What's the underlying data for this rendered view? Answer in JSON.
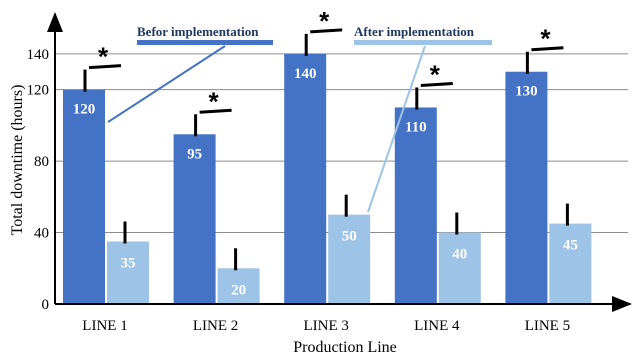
{
  "chart_data": {
    "type": "bar",
    "categories": [
      "LINE 1",
      "LINE 2",
      "LINE 3",
      "LINE 4",
      "LINE 5"
    ],
    "series": [
      {
        "name": "Befor implementation",
        "values": [
          120,
          95,
          140,
          110,
          130
        ],
        "color": "#4472c4"
      },
      {
        "name": "After implementation",
        "values": [
          35,
          20,
          50,
          40,
          45
        ],
        "color": "#9dc3e6"
      }
    ],
    "data_labels": {
      "before": [
        "120",
        "95",
        "140",
        "110",
        "130"
      ],
      "after": [
        "35",
        "20",
        "50",
        "40",
        "45"
      ]
    },
    "xlabel": "Production Line",
    "ylabel": "Total downtime (hours)",
    "ylim": [
      0,
      150
    ],
    "yticks": [
      "0",
      "40",
      "80",
      "120",
      "140"
    ],
    "ytick_values": [
      0,
      40,
      80,
      120,
      140
    ],
    "significance_marker": "*",
    "grid": true,
    "legend": "callout labels inside plot"
  }
}
